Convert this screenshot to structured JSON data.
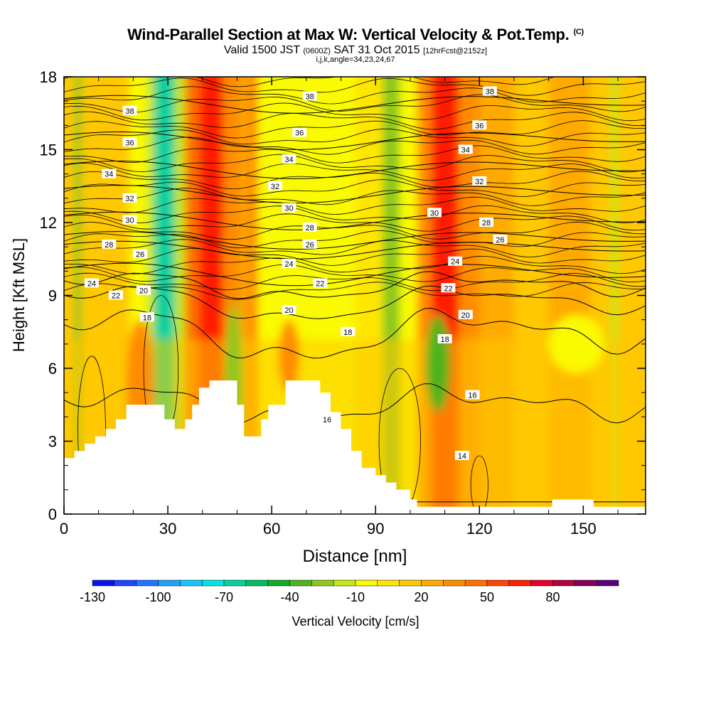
{
  "header": {
    "title": "Wind-Parallel Section at Max W: Vertical Velocity & Pot.Temp.",
    "title_mark": "(C)",
    "subtitle_valid": "Valid 1500 JST",
    "subtitle_utc": "(0600Z)",
    "subtitle_date": "SAT 31 Oct 2015",
    "subtitle_fcst": "[12hrFcst@2152z]",
    "subtitle2": "i,j,k,angle=34,23,24,67"
  },
  "chart_data": {
    "type": "heatmap",
    "xlabel": "Distance [nm]",
    "ylabel": "Height [Kft MSL]",
    "xlim": [
      0,
      168
    ],
    "ylim": [
      0,
      18
    ],
    "x_ticks": [
      0,
      30,
      60,
      90,
      120,
      150
    ],
    "y_ticks": [
      0,
      3,
      6,
      9,
      12,
      15,
      18
    ],
    "colorbar": {
      "label": "Vertical Velocity [cm/s]",
      "tick_labels": [
        "-130",
        "-100",
        "-70",
        "-40",
        "-10",
        "20",
        "50",
        "80"
      ],
      "colors": [
        "#0a14f0",
        "#1e46ff",
        "#1e78ff",
        "#1ea0ff",
        "#10c8ff",
        "#00e6e6",
        "#00d2a0",
        "#00be64",
        "#14aa28",
        "#50b41e",
        "#8cc81e",
        "#c8e614",
        "#fafa00",
        "#ffe600",
        "#ffc800",
        "#ffaa00",
        "#ff8c00",
        "#ff6e00",
        "#ff4600",
        "#ff1e00",
        "#e6002d",
        "#b4003c",
        "#82005a",
        "#5a007d"
      ]
    },
    "velocity_bands": [
      {
        "x": 0,
        "w": 3,
        "color": "#ffc800"
      },
      {
        "x": 3,
        "w": 2,
        "color": "#8cc81e"
      },
      {
        "x": 5,
        "w": 14,
        "color": "#ffc800"
      },
      {
        "x": 19,
        "w": 5,
        "color": "#fafa00"
      },
      {
        "x": 24,
        "w": 2,
        "color": "#c8e614"
      },
      {
        "x": 26,
        "w": 6,
        "color": "#00d2a0"
      },
      {
        "x": 32,
        "w": 3,
        "color": "#c8e614"
      },
      {
        "x": 35,
        "w": 4,
        "color": "#ff6e00"
      },
      {
        "x": 39,
        "w": 7,
        "color": "#ff1e00"
      },
      {
        "x": 46,
        "w": 5,
        "color": "#ff8c00"
      },
      {
        "x": 51,
        "w": 2,
        "color": "#ffaa00"
      },
      {
        "x": 53,
        "w": 3,
        "color": "#ff8c00"
      },
      {
        "x": 56,
        "w": 28,
        "color": "#fafa00"
      },
      {
        "x": 84,
        "w": 8,
        "color": "#ffe600"
      },
      {
        "x": 92,
        "w": 5,
        "color": "#8cc81e"
      },
      {
        "x": 97,
        "w": 5,
        "color": "#fafa00"
      },
      {
        "x": 102,
        "w": 4,
        "color": "#ff8c00"
      },
      {
        "x": 106,
        "w": 8,
        "color": "#ff1e00"
      },
      {
        "x": 114,
        "w": 6,
        "color": "#ff8c00"
      },
      {
        "x": 120,
        "w": 10,
        "color": "#ffaa00"
      },
      {
        "x": 130,
        "w": 10,
        "color": "#ffc800"
      },
      {
        "x": 140,
        "w": 12,
        "color": "#ffaa00"
      },
      {
        "x": 152,
        "w": 6,
        "color": "#ffc800"
      },
      {
        "x": 158,
        "w": 2,
        "color": "#c8e614"
      },
      {
        "x": 160,
        "w": 8,
        "color": "#ffc800"
      }
    ],
    "low_level_patches": [
      {
        "x": 22,
        "y": 5.5,
        "rx": 4,
        "ry": 2.5,
        "color": "#ff8c00"
      },
      {
        "x": 49,
        "y": 5.2,
        "rx": 2.5,
        "ry": 3.5,
        "color": "#8cc81e"
      },
      {
        "x": 108,
        "y": 6.2,
        "rx": 3.5,
        "ry": 2,
        "color": "#50b41e"
      },
      {
        "x": 65,
        "y": 6.5,
        "rx": 3,
        "ry": 1.5,
        "color": "#ff8c00"
      },
      {
        "x": 148,
        "y": 7,
        "rx": 8,
        "ry": 1.2,
        "color": "#fafa00"
      }
    ],
    "theta_contours": [
      {
        "theta": 14,
        "base": 0.5,
        "amp": [
          0,
          0,
          0,
          0
        ],
        "labels": [
          [
            115,
            2.4
          ]
        ]
      },
      {
        "theta": 16,
        "base": 4.5,
        "amp": [
          0.4,
          -0.3,
          0.2,
          -0.2
        ],
        "labels": [
          [
            76,
            3.9
          ],
          [
            118,
            4.9
          ]
        ]
      },
      {
        "theta": 18,
        "base": 7.4,
        "amp": [
          0.6,
          -0.3,
          0.4,
          -0.2
        ],
        "labels": [
          [
            24,
            8.1
          ],
          [
            82,
            7.5
          ],
          [
            110,
            7.2
          ]
        ]
      },
      {
        "theta": 20,
        "base": 8.7,
        "amp": [
          0.4,
          -0.2,
          0.3,
          -0.1
        ],
        "labels": [
          [
            23,
            9.2
          ],
          [
            65,
            8.4
          ],
          [
            116,
            8.2
          ]
        ]
      },
      {
        "theta": 22,
        "base": 9.4,
        "amp": [
          0.3,
          -0.2,
          0.2,
          -0.1
        ],
        "labels": [
          [
            15,
            9.0
          ],
          [
            74,
            9.5
          ],
          [
            111,
            9.3
          ]
        ]
      },
      {
        "theta": 24,
        "base": 9.9,
        "amp": [
          0.3,
          0,
          0.2,
          0
        ],
        "labels": [
          [
            8,
            9.5
          ],
          [
            65,
            10.3
          ],
          [
            113,
            10.4
          ]
        ]
      },
      {
        "theta": 26,
        "base": 10.9,
        "amp": [
          0.2,
          0,
          0.2,
          0
        ],
        "labels": [
          [
            22,
            10.7
          ],
          [
            71,
            11.1
          ],
          [
            126,
            11.3
          ]
        ]
      },
      {
        "theta": 28,
        "base": 11.3,
        "amp": [
          0.2,
          0,
          0.2,
          0
        ],
        "labels": [
          [
            13,
            11.1
          ],
          [
            71,
            11.8
          ],
          [
            122,
            12.0
          ]
        ]
      },
      {
        "theta": 30,
        "base": 12.1,
        "amp": [
          0.2,
          0,
          0.2,
          0
        ],
        "labels": [
          [
            19,
            12.1
          ],
          [
            65,
            12.6
          ],
          [
            107,
            12.4
          ]
        ]
      },
      {
        "theta": 32,
        "base": 13.2,
        "amp": [
          0.2,
          0,
          0.2,
          0
        ],
        "labels": [
          [
            19,
            13.0
          ],
          [
            61,
            13.5
          ],
          [
            120,
            13.7
          ]
        ]
      },
      {
        "theta": 34,
        "base": 14.2,
        "amp": [
          0.2,
          0,
          0.2,
          0
        ],
        "labels": [
          [
            13,
            14.0
          ],
          [
            65,
            14.6
          ],
          [
            116,
            15.0
          ]
        ]
      },
      {
        "theta": 36,
        "base": 15.4,
        "amp": [
          0.2,
          0,
          0.2,
          0
        ],
        "labels": [
          [
            19,
            15.3
          ],
          [
            68,
            15.7
          ],
          [
            120,
            16.0
          ]
        ]
      },
      {
        "theta": 38,
        "base": 16.9,
        "amp": [
          0.2,
          0,
          0.2,
          0
        ],
        "labels": [
          [
            19,
            16.6
          ],
          [
            71,
            17.2
          ],
          [
            123,
            17.4
          ]
        ]
      }
    ],
    "terrain": [
      [
        0,
        2.3
      ],
      [
        3,
        2.6
      ],
      [
        6,
        2.9
      ],
      [
        9,
        3.2
      ],
      [
        12,
        3.5
      ],
      [
        15,
        3.9
      ],
      [
        18,
        4.5
      ],
      [
        24,
        4.5
      ],
      [
        27,
        4.5
      ],
      [
        29,
        3.9
      ],
      [
        32,
        3.5
      ],
      [
        35,
        3.9
      ],
      [
        37,
        4.5
      ],
      [
        39,
        5.2
      ],
      [
        42,
        5.5
      ],
      [
        48,
        5.5
      ],
      [
        50,
        4.5
      ],
      [
        52,
        3.2
      ],
      [
        55,
        3.2
      ],
      [
        57,
        3.9
      ],
      [
        59,
        4.5
      ],
      [
        62,
        4.5
      ],
      [
        64,
        5.5
      ],
      [
        71,
        5.5
      ],
      [
        74,
        5.0
      ],
      [
        77,
        4.2
      ],
      [
        80,
        3.5
      ],
      [
        83,
        2.6
      ],
      [
        86,
        1.9
      ],
      [
        90,
        1.6
      ],
      [
        93,
        1.3
      ],
      [
        96,
        1.0
      ],
      [
        100,
        0.6
      ],
      [
        102,
        0.3
      ],
      [
        108,
        0.3
      ],
      [
        140,
        0.3
      ],
      [
        141,
        0.6
      ],
      [
        152,
        0.6
      ],
      [
        153,
        0.3
      ],
      [
        168,
        0.3
      ]
    ]
  }
}
